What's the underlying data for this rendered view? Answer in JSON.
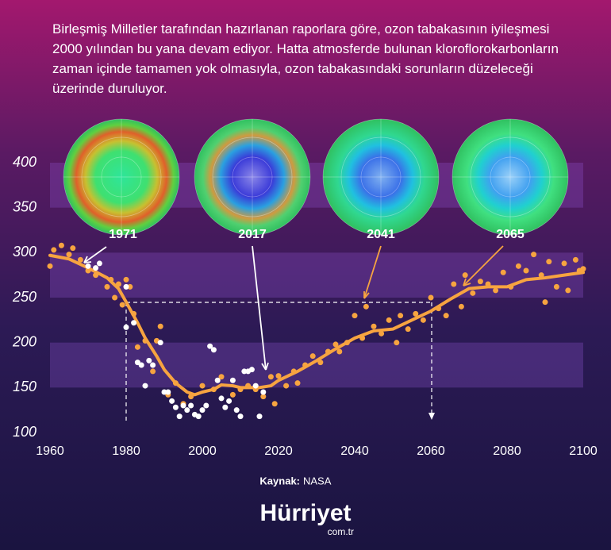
{
  "chart_data": {
    "type": "scatter",
    "title": "Birleşmiş Milletler tarafından hazırlanan raporlara göre, ozon tabakasının iyileşmesi 2000 yılından bu yana devam ediyor. Hatta atmosferde bulunan kloroflorokarbonların zaman içinde tamamen yok olmasıyla, ozon tabakasındaki sorunların düzeleceği üzerinde duruluyor.",
    "annotations": [
      "1971",
      "2017",
      "2041",
      "2065"
    ],
    "source_label": "Kaynak:",
    "source": "NASA",
    "logo": "Hürriyet",
    "logo_suffix": "com.tr",
    "xlim": [
      1960,
      2100
    ],
    "xticks": [
      1960,
      1980,
      2000,
      2020,
      2040,
      2060,
      2080,
      2100
    ],
    "ylim": [
      100,
      400
    ],
    "yticks": [
      100,
      150,
      200,
      250,
      300,
      350,
      400
    ],
    "series": [
      {
        "type": "line",
        "color": "#f7a440",
        "x": [
          1960,
          1965,
          1970,
          1975,
          1978,
          1980,
          1983,
          1985,
          1988,
          1990,
          1993,
          1996,
          1998,
          2000,
          2003,
          2005,
          2008,
          2010,
          2015,
          2018,
          2020,
          2025,
          2030,
          2035,
          2040,
          2045,
          2050,
          2055,
          2060,
          2065,
          2070,
          2075,
          2080,
          2085,
          2090,
          2095,
          2100
        ],
        "values": [
          297,
          293,
          283,
          272,
          260,
          245,
          222,
          205,
          185,
          170,
          155,
          145,
          142,
          145,
          148,
          153,
          152,
          150,
          150,
          152,
          158,
          168,
          180,
          193,
          205,
          213,
          215,
          225,
          235,
          248,
          260,
          262,
          262,
          270,
          272,
          275,
          278
        ]
      },
      {
        "type": "scatter",
        "color": "#f7a440",
        "x": [
          1960,
          1961,
          1963,
          1965,
          1966,
          1968,
          1970,
          1972,
          1975,
          1976,
          1977,
          1978,
          1979,
          1980,
          1981,
          1982,
          1983,
          1985,
          1987,
          1988,
          1989,
          1991,
          1993,
          1995,
          1997,
          2000,
          2003,
          2005,
          2008,
          2010,
          2012,
          2014,
          2016,
          2018,
          2019,
          2020,
          2022,
          2024,
          2025,
          2027,
          2029,
          2031,
          2033,
          2035,
          2036,
          2038,
          2040,
          2042,
          2043,
          2045,
          2047,
          2049,
          2051,
          2052,
          2054,
          2056,
          2058,
          2060,
          2062,
          2064,
          2066,
          2068,
          2069,
          2071,
          2073,
          2075,
          2077,
          2079,
          2081,
          2083,
          2085,
          2087,
          2089,
          2090,
          2091,
          2093,
          2095,
          2096,
          2098,
          2099,
          2100
        ],
        "values": [
          285,
          303,
          308,
          298,
          305,
          292,
          280,
          275,
          262,
          270,
          250,
          265,
          242,
          270,
          262,
          232,
          195,
          202,
          168,
          202,
          218,
          142,
          155,
          132,
          140,
          152,
          148,
          162,
          142,
          148,
          152,
          148,
          140,
          162,
          132,
          163,
          152,
          168,
          155,
          175,
          185,
          178,
          190,
          198,
          190,
          200,
          230,
          205,
          240,
          218,
          210,
          225,
          200,
          230,
          215,
          232,
          225,
          250,
          238,
          230,
          265,
          240,
          275,
          255,
          268,
          265,
          258,
          278,
          262,
          285,
          280,
          298,
          275,
          245,
          290,
          262,
          288,
          258,
          292,
          280,
          282
        ]
      },
      {
        "type": "scatter",
        "color": "#ffffff",
        "x": [
          1970,
          1972,
          1973,
          1980,
          1980,
          1982,
          1983,
          1984,
          1985,
          1986,
          1987,
          1989,
          1990,
          1991,
          1992,
          1993,
          1994,
          1995,
          1996,
          1997,
          1998,
          1999,
          2000,
          2001,
          2002,
          2003,
          2004,
          2005,
          2006,
          2007,
          2008,
          2009,
          2010,
          2011,
          2012,
          2013,
          2014,
          2015,
          2016
        ],
        "values": [
          285,
          283,
          288,
          262,
          217,
          222,
          178,
          175,
          152,
          180,
          175,
          200,
          145,
          145,
          135,
          128,
          118,
          130,
          125,
          130,
          120,
          118,
          125,
          130,
          196,
          192,
          158,
          138,
          128,
          135,
          158,
          125,
          118,
          168,
          168,
          170,
          152,
          118,
          145
        ]
      }
    ]
  }
}
